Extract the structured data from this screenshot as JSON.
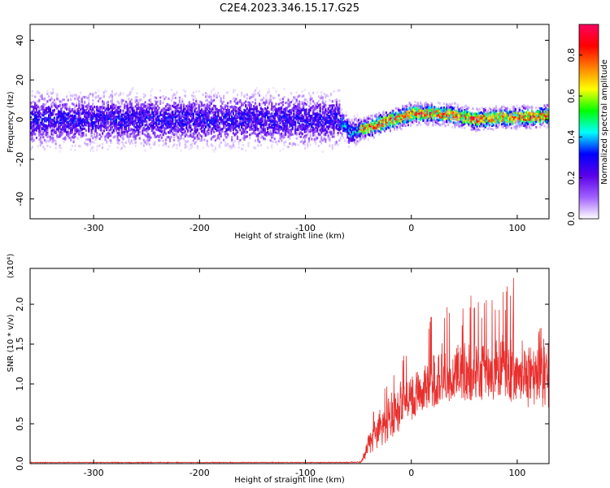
{
  "figure": {
    "title": "C2E4.2023.346.15.17.G25"
  },
  "chart_data": [
    {
      "type": "heatmap",
      "xlabel": "Height of straight line (km)",
      "ylabel": "Frequency (Hz)",
      "xlim": [
        -360,
        130
      ],
      "ylim": [
        -50,
        48
      ],
      "xticks": [
        -300,
        -200,
        -100,
        0,
        100
      ],
      "xtick_labels": [
        "-300",
        "-200",
        "-100",
        "0",
        "100"
      ],
      "yticks": [
        -40,
        -20,
        0,
        20,
        40
      ],
      "ytick_labels": [
        "-40",
        "-20",
        "0",
        "20",
        "40"
      ],
      "grid": false,
      "regions": [
        {
          "x_range": [
            -360,
            -68
          ],
          "center_frequency_hz": 0,
          "core_halfwidth_hz": 8,
          "scatter_halfwidth_hz": 48,
          "peak_amplitude": 0.35
        },
        {
          "x_range": [
            -68,
            -50
          ],
          "center_frequency_hz": -6,
          "core_halfwidth_hz": 4,
          "scatter_halfwidth_hz": 8,
          "peak_amplitude": 0.5
        },
        {
          "x_range": [
            -50,
            130
          ],
          "center_frequency_hz": 1,
          "core_halfwidth_hz": 3,
          "scatter_halfwidth_hz": 6,
          "peak_amplitude": 0.95
        }
      ],
      "ridge": [
        {
          "x": -65,
          "y": -2
        },
        {
          "x": -58,
          "y": -7
        },
        {
          "x": -50,
          "y": -5
        },
        {
          "x": -40,
          "y": -4
        },
        {
          "x": -25,
          "y": -1
        },
        {
          "x": -10,
          "y": 1
        },
        {
          "x": 0,
          "y": 3
        },
        {
          "x": 20,
          "y": 3
        },
        {
          "x": 40,
          "y": 2
        },
        {
          "x": 60,
          "y": 0
        },
        {
          "x": 80,
          "y": 1
        },
        {
          "x": 100,
          "y": 1
        },
        {
          "x": 130,
          "y": 2
        }
      ],
      "colorbar": {
        "label": "Normalized spectral amplitude",
        "range": [
          0,
          0.95
        ],
        "ticks": [
          0.0,
          0.2,
          0.4,
          0.6,
          0.8
        ],
        "tick_labels": [
          "0.0",
          "0.2",
          "0.4",
          "0.6",
          "0.8"
        ],
        "colors": [
          "#ffffff",
          "#a060ff",
          "#5a00e8",
          "#0000ff",
          "#00ffff",
          "#00ff00",
          "#ffff00",
          "#ff8000",
          "#ff0000",
          "#ff0060"
        ]
      }
    },
    {
      "type": "line",
      "xlabel": "Height of straight line (km)",
      "ylabel": "SNR (10 * v/v)",
      "y_exponent_label": "(x10⁴)",
      "xlim": [
        -360,
        130
      ],
      "ylim": [
        0,
        2.45
      ],
      "xticks": [
        -300,
        -200,
        -100,
        0,
        100
      ],
      "xtick_labels": [
        "-300",
        "-200",
        "-100",
        "0",
        "100"
      ],
      "yticks": [
        0,
        0.5,
        1.0,
        1.5,
        2.0
      ],
      "ytick_labels": [
        "0.0",
        "0.5",
        "1.0",
        "1.5",
        "2.0"
      ],
      "grid": false,
      "series": [
        {
          "color": "#e8302e",
          "envelope": {
            "x": [
              -360,
              -60,
              -48,
              -44,
              -40,
              -30,
              -20,
              -10,
              0,
              10,
              20,
              30,
              40,
              60,
              80,
              100,
              110,
              120,
              130
            ],
            "baseline": [
              0.01,
              0.01,
              0.01,
              0.05,
              0.12,
              0.2,
              0.3,
              0.4,
              0.5,
              0.6,
              0.7,
              0.75,
              0.75,
              0.75,
              0.75,
              0.75,
              0.7,
              0.7,
              0.7
            ],
            "mean": [
              0.015,
              0.015,
              0.02,
              0.1,
              0.3,
              0.5,
              0.65,
              0.78,
              0.85,
              0.95,
              1.05,
              1.15,
              1.15,
              1.2,
              1.22,
              1.25,
              1.22,
              1.2,
              1.2
            ],
            "peak": [
              0.02,
              0.02,
              0.04,
              0.2,
              0.55,
              0.9,
              1.1,
              1.4,
              1.4,
              1.55,
              2.1,
              2.1,
              2.05,
              2.15,
              2.1,
              2.45,
              1.8,
              1.75,
              1.7
            ]
          }
        }
      ]
    }
  ]
}
